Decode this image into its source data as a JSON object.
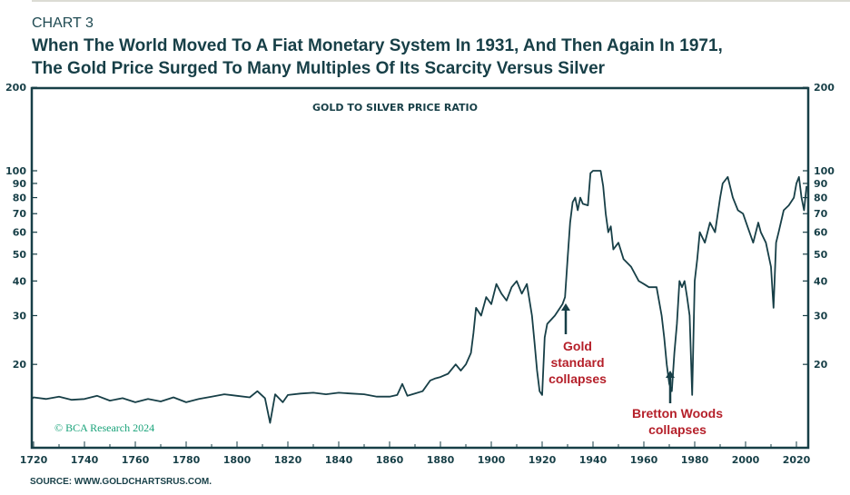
{
  "header": {
    "kicker": "CHART 3",
    "title_line1": "When The World Moved To A Fiat Monetary System In 1931, And Then Again In 1971,",
    "title_line2": "The Gold Price Surged To Many Multiples Of Its Scarcity Versus Silver"
  },
  "source": "SOURCE: WWW.GOLDCHARTSRUS.COM.",
  "watermark": "© BCA Research 2024",
  "colors": {
    "line": "#173f47",
    "annotation": "#b5202a",
    "watermark": "#1aa37a"
  },
  "chart_data": {
    "type": "line",
    "title": "GOLD TO SILVER PRICE RATIO",
    "yscale": "log",
    "ylim": [
      10,
      200
    ],
    "xlim": [
      1716,
      2025
    ],
    "yticks": [
      20,
      30,
      40,
      50,
      60,
      70,
      80,
      90,
      100,
      200
    ],
    "xticks": [
      1720,
      1740,
      1760,
      1780,
      1800,
      1820,
      1840,
      1860,
      1880,
      1900,
      1920,
      1940,
      1960,
      1980,
      2000,
      2020
    ],
    "series": [
      {
        "name": "Gold to silver price ratio",
        "x": [
          1716,
          1720,
          1725,
          1730,
          1735,
          1740,
          1745,
          1750,
          1755,
          1760,
          1765,
          1770,
          1775,
          1780,
          1785,
          1790,
          1795,
          1800,
          1805,
          1808,
          1811,
          1813,
          1815,
          1818,
          1820,
          1825,
          1830,
          1835,
          1840,
          1845,
          1850,
          1855,
          1860,
          1863,
          1865,
          1867,
          1870,
          1873,
          1876,
          1878,
          1880,
          1883,
          1886,
          1888,
          1890,
          1892,
          1893,
          1894,
          1896,
          1898,
          1900,
          1902,
          1904,
          1906,
          1908,
          1910,
          1912,
          1914,
          1916,
          1917,
          1918,
          1919,
          1920,
          1921,
          1922,
          1925,
          1928,
          1929,
          1930,
          1931,
          1932,
          1933,
          1934,
          1935,
          1936,
          1938,
          1939,
          1940,
          1943,
          1944,
          1945,
          1946,
          1947,
          1948,
          1950,
          1952,
          1955,
          1958,
          1960,
          1962,
          1965,
          1967,
          1968,
          1969,
          1970,
          1971,
          1972,
          1973,
          1974,
          1975,
          1976,
          1977,
          1978,
          1979,
          1980,
          1981,
          1982,
          1984,
          1986,
          1988,
          1990,
          1991,
          1993,
          1995,
          1997,
          1999,
          2001,
          2003,
          2005,
          2006,
          2008,
          2010,
          2011,
          2012,
          2013,
          2015,
          2017,
          2019,
          2020,
          2021,
          2022,
          2023,
          2024
        ],
        "y": [
          15,
          15.2,
          15,
          15.3,
          14.9,
          15,
          15.4,
          14.8,
          15.1,
          14.6,
          15,
          14.7,
          15.2,
          14.6,
          15,
          15.3,
          15.6,
          15.4,
          15.2,
          16,
          15.1,
          12.3,
          15.6,
          14.6,
          15.5,
          15.7,
          15.8,
          15.6,
          15.8,
          15.7,
          15.6,
          15.3,
          15.3,
          15.5,
          17,
          15.4,
          15.7,
          16,
          17.5,
          17.8,
          18,
          18.5,
          20,
          19,
          20,
          22,
          26,
          32,
          30,
          35,
          33,
          39,
          36,
          34,
          38,
          40,
          36,
          39,
          30,
          24,
          19,
          16,
          15.5,
          25,
          28,
          30,
          33,
          35,
          48,
          65,
          77,
          80,
          72,
          80,
          76,
          75,
          98,
          100,
          100,
          88,
          70,
          60,
          63,
          52,
          55,
          48,
          45,
          40,
          39,
          38,
          38,
          30,
          25,
          20,
          17,
          16,
          22,
          28,
          40,
          38,
          40,
          35,
          30,
          15.5,
          40,
          48,
          60,
          55,
          65,
          60,
          80,
          90,
          95,
          80,
          72,
          70,
          62,
          55,
          65,
          60,
          55,
          45,
          32,
          55,
          60,
          72,
          75,
          80,
          90,
          95,
          80,
          72,
          88
        ]
      }
    ]
  },
  "annotations": [
    {
      "text_lines": [
        "Gold",
        "standard",
        "collapses"
      ],
      "x": 1931
    },
    {
      "text_lines": [
        "Bretton Woods",
        "collapses"
      ],
      "x": 1971
    }
  ]
}
